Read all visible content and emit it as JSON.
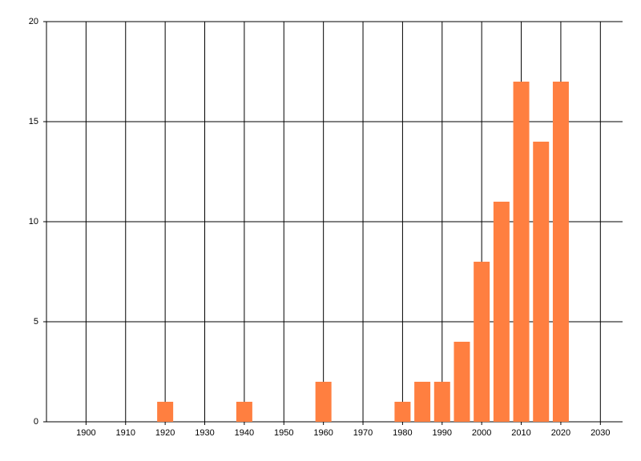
{
  "chart_data": {
    "type": "bar",
    "x": [
      1920,
      1940,
      1960,
      1980,
      1985,
      1990,
      1995,
      2000,
      2005,
      2010,
      2015,
      2020
    ],
    "values": [
      1,
      1,
      2,
      1,
      2,
      2,
      4,
      8,
      11,
      17,
      14,
      17
    ],
    "color": "#ff7f40",
    "xlim": [
      1890,
      2035
    ],
    "xticks": [
      1900,
      1910,
      1920,
      1930,
      1940,
      1950,
      1960,
      1970,
      1980,
      1990,
      2000,
      2010,
      2020,
      2030
    ],
    "ylim": [
      0,
      20
    ],
    "yticks": [
      0,
      5,
      10,
      15,
      20
    ],
    "grid": true
  }
}
